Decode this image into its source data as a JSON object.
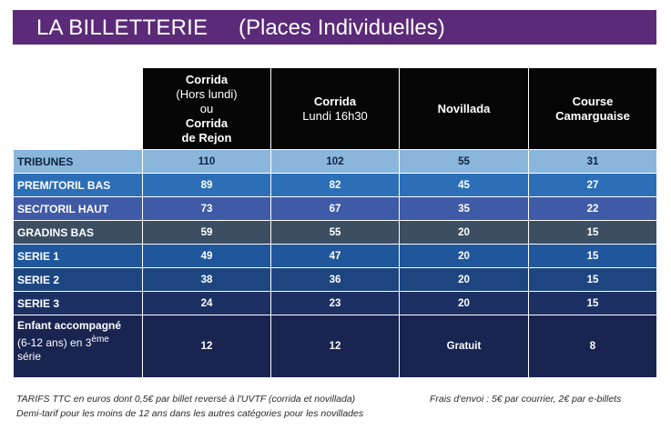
{
  "banner": {
    "title": "LA BILLETTERIE",
    "subtitle": "(Places Individuelles)"
  },
  "table": {
    "headers": [
      {
        "lines": [
          "Corrida",
          "(Hors lundi)",
          "ou",
          "Corrida",
          "de Rejon"
        ]
      },
      {
        "lines": [
          "Corrida",
          "Lundi 16h30"
        ]
      },
      {
        "lines": [
          "Novillada"
        ]
      },
      {
        "lines": [
          "Course",
          "Camarguaise"
        ]
      }
    ],
    "rows": [
      {
        "label": "TRIBUNES",
        "values": [
          "110",
          "102",
          "55",
          "31"
        ]
      },
      {
        "label": "PREM/TORIL BAS",
        "values": [
          "89",
          "82",
          "45",
          "27"
        ]
      },
      {
        "label": "SEC/TORIL HAUT",
        "values": [
          "73",
          "67",
          "35",
          "22"
        ]
      },
      {
        "label": "GRADINS BAS",
        "values": [
          "59",
          "55",
          "20",
          "15"
        ]
      },
      {
        "label": "SERIE 1",
        "values": [
          "49",
          "47",
          "20",
          "15"
        ]
      },
      {
        "label": "SERIE 2",
        "values": [
          "38",
          "36",
          "20",
          "15"
        ]
      },
      {
        "label": "SERIE 3",
        "values": [
          "24",
          "23",
          "20",
          "15"
        ]
      },
      {
        "label": "Enfant accompagné",
        "sublabel": "(6-12 ans) en 3",
        "sup": "ème",
        "sublabel2": "série",
        "values": [
          "12",
          "12",
          "Gratuit",
          "8"
        ]
      }
    ]
  },
  "footer": {
    "note1": "TARIFS TTC en euros dont 0,5€ par billet reversé à l'UVTF (corrida et novillada)",
    "note2": "Demi-tarif pour les moins de 12 ans dans les autres catégories pour les novillades",
    "note3": "Frais d'envoi : 5€ par courrier, 2€ par e-billets"
  }
}
